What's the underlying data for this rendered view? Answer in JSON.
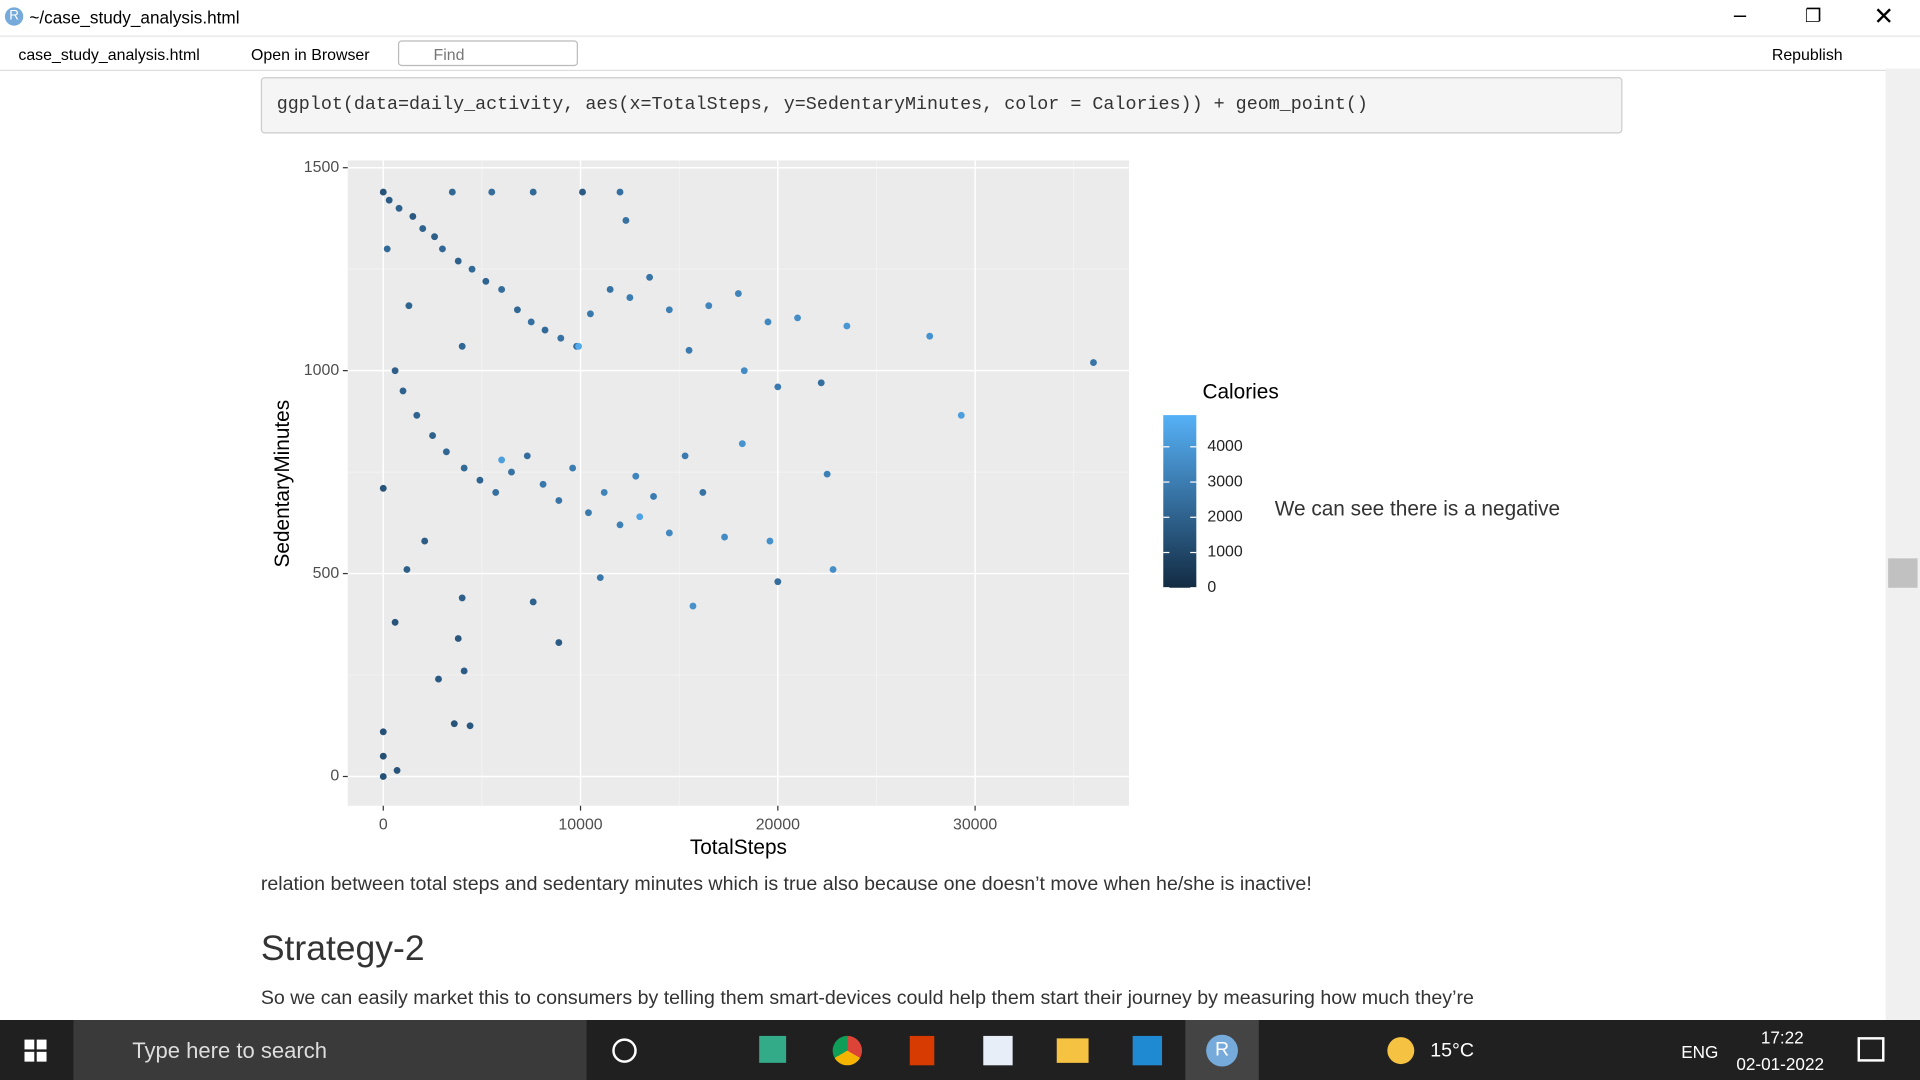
{
  "window": {
    "title": "~/case_study_analysis.html"
  },
  "toolbar": {
    "tab": "case_study_analysis.html",
    "open_browser": "Open in Browser",
    "find": "Find",
    "republish": "Republish"
  },
  "document": {
    "code": "ggplot(data=daily_activity, aes(x=TotalSteps, y=SedentaryMinutes, color = Calories)) + geom_point()",
    "side_text": "We can see there is a negative",
    "paragraph": "relation between total steps and sedentary minutes which is true also because one doesn’t move when he/she is inactive!",
    "heading": "Strategy-2",
    "paragraph2": "So we can easily market this to consumers by telling them smart-devices could help them start their journey by measuring how much they’re"
  },
  "chart_data": {
    "type": "scatter",
    "xlabel": "TotalSteps",
    "ylabel": "SedentaryMinutes",
    "x": [
      0,
      300,
      800,
      1500,
      2000,
      2600,
      3000,
      3800,
      4500,
      5200,
      6000,
      6800,
      7500,
      8200,
      9000,
      9800,
      10500,
      11500,
      12500,
      13500,
      14500,
      15500,
      16500,
      18000,
      19500,
      21000,
      23500,
      27700,
      36000,
      20000,
      22200,
      18300,
      3500,
      5500,
      7600,
      10100,
      12000,
      12300,
      600,
      1000,
      1700,
      2500,
      3200,
      4100,
      4900,
      5700,
      6500,
      7300,
      8100,
      8900,
      9600,
      10400,
      11200,
      12000,
      12800,
      13700,
      14500,
      15300,
      16200,
      17300,
      18200,
      19600,
      22800,
      22500,
      29300,
      20000,
      15700,
      11000,
      8900,
      7600,
      4000,
      3800,
      2800,
      4100,
      3600,
      4400,
      700,
      0,
      0,
      0,
      600,
      0,
      1200,
      9900,
      6000,
      13000,
      200,
      1300,
      4000,
      2100
    ],
    "values": [
      1440,
      1420,
      1400,
      1380,
      1350,
      1330,
      1300,
      1270,
      1250,
      1220,
      1200,
      1150,
      1120,
      1100,
      1080,
      1060,
      1140,
      1200,
      1180,
      1230,
      1150,
      1050,
      1160,
      1190,
      1120,
      1130,
      1110,
      1085,
      1020,
      960,
      970,
      1000,
      1440,
      1440,
      1440,
      1440,
      1440,
      1370,
      1000,
      950,
      890,
      840,
      800,
      760,
      730,
      700,
      750,
      790,
      720,
      680,
      760,
      650,
      700,
      620,
      740,
      690,
      600,
      790,
      700,
      590,
      820,
      580,
      510,
      745,
      890,
      480,
      420,
      490,
      330,
      430,
      440,
      340,
      240,
      260,
      130,
      125,
      15,
      0,
      50,
      110,
      380,
      710,
      510,
      1060,
      780,
      640,
      1300,
      1160,
      1060,
      580
    ],
    "calories": [
      1500,
      1800,
      2000,
      1700,
      2100,
      1900,
      2200,
      2000,
      2300,
      2100,
      2400,
      2200,
      2500,
      2300,
      2600,
      2400,
      2800,
      2600,
      3000,
      2700,
      3100,
      2900,
      3300,
      3200,
      3400,
      3600,
      3900,
      3800,
      2700,
      2900,
      2500,
      3500,
      2200,
      2400,
      2300,
      1800,
      2500,
      2600,
      1900,
      2000,
      2100,
      2000,
      2200,
      2300,
      2100,
      2500,
      2600,
      2400,
      2800,
      2700,
      3000,
      2900,
      3200,
      3100,
      3300,
      3000,
      3400,
      2900,
      2600,
      3500,
      3800,
      3700,
      3600,
      3100,
      4200,
      2400,
      3700,
      2800,
      1800,
      2000,
      1900,
      1600,
      1700,
      1800,
      1500,
      1600,
      1500,
      1400,
      1300,
      1400,
      1500,
      1500,
      1900,
      4600,
      4200,
      4400,
      2300,
      2100,
      2200,
      1800
    ],
    "xlim": [
      -1800,
      37800
    ],
    "ylim": [
      -72,
      1518
    ],
    "xticks": [
      0,
      10000,
      20000,
      30000
    ],
    "yticks": [
      0,
      500,
      1000,
      1500
    ],
    "grid": true,
    "legend_title": "Calories",
    "clim": [
      0,
      4900
    ],
    "cticks": [
      0,
      1000,
      2000,
      3000,
      4000
    ],
    "color_low": "#132B43",
    "color_high": "#56B1F7"
  },
  "taskbar": {
    "search": "Type here to search",
    "temp": "15°C",
    "lang": "ENG",
    "time": "17:22",
    "date": "02-01-2022"
  }
}
